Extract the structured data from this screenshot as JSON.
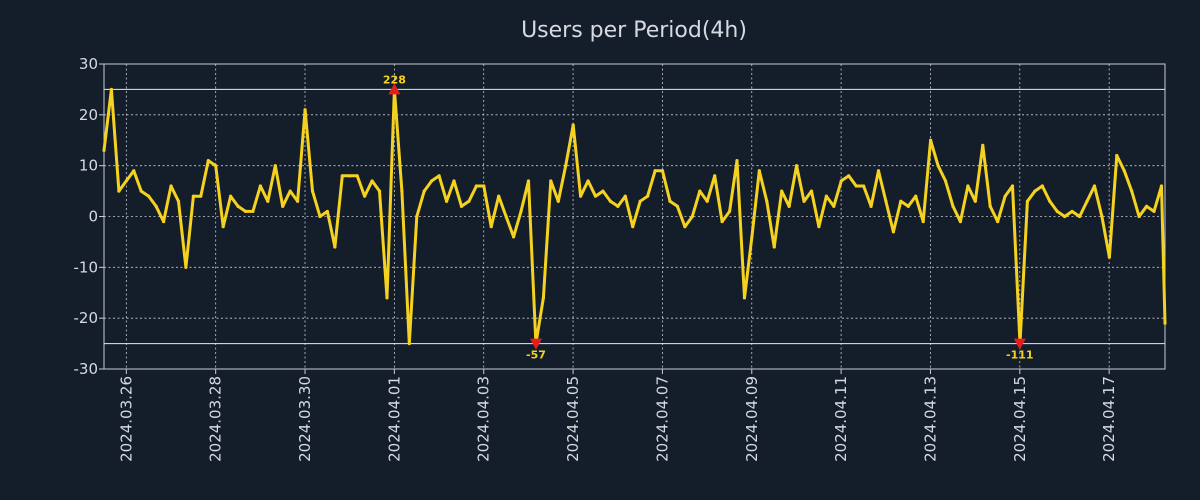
{
  "chart_data": {
    "type": "line",
    "title": "Users per Period(4h)",
    "xlabel": "",
    "ylabel": "",
    "ylim": [
      -30,
      30
    ],
    "yticks": [
      30,
      20,
      10,
      0,
      -10,
      -20,
      -30
    ],
    "xlim": [
      0,
      23.75
    ],
    "xticks": [
      {
        "pos": 0.5,
        "label": "2024.03.26"
      },
      {
        "pos": 2.5,
        "label": "2024.03.28"
      },
      {
        "pos": 4.5,
        "label": "2024.03.30"
      },
      {
        "pos": 6.5,
        "label": "2024.04.01"
      },
      {
        "pos": 8.5,
        "label": "2024.04.03"
      },
      {
        "pos": 10.5,
        "label": "2024.04.05"
      },
      {
        "pos": 12.5,
        "label": "2024.04.07"
      },
      {
        "pos": 14.5,
        "label": "2024.04.09"
      },
      {
        "pos": 16.5,
        "label": "2024.04.11"
      },
      {
        "pos": 18.5,
        "label": "2024.04.13"
      },
      {
        "pos": 20.5,
        "label": "2024.04.15"
      },
      {
        "pos": 22.5,
        "label": "2024.04.17"
      }
    ],
    "thresholds": [
      25,
      -25
    ],
    "series": [
      {
        "name": "Users",
        "color": "#f4d21f",
        "x_start": 0,
        "x_step": 0.1667,
        "values": [
          13,
          25,
          5,
          7,
          9,
          5,
          4,
          2,
          -1,
          6,
          3,
          -10,
          4,
          4,
          11,
          10,
          -2,
          4,
          2,
          1,
          1,
          6,
          3,
          10,
          2,
          5,
          3,
          21,
          5,
          0,
          1,
          -6,
          8,
          8,
          8,
          4,
          7,
          5,
          -16,
          25,
          5,
          -25,
          0,
          5,
          7,
          8,
          3,
          7,
          2,
          3,
          6,
          6,
          -2,
          4,
          0,
          -4,
          1,
          7,
          -25,
          -16,
          7,
          3,
          10,
          18,
          4,
          7,
          4,
          5,
          3,
          2,
          4,
          -2,
          3,
          4,
          9,
          9,
          3,
          2,
          -2,
          0,
          5,
          3,
          8,
          -1,
          1,
          11,
          -16,
          -4,
          9,
          3,
          -6,
          5,
          2,
          10,
          3,
          5,
          -2,
          4,
          2,
          7,
          8,
          6,
          6,
          2,
          9,
          3,
          -3,
          3,
          2,
          4,
          -1,
          15,
          10,
          7,
          2,
          -1,
          6,
          3,
          14,
          2,
          -1,
          4,
          6,
          -25,
          3,
          5,
          6,
          3,
          1,
          0,
          1,
          0,
          3,
          6,
          0,
          -8,
          12,
          9,
          5,
          0,
          2,
          1,
          6,
          -21
        ]
      }
    ],
    "annotations": [
      {
        "type": "max",
        "x": 6.5,
        "y": 25,
        "label": "228",
        "marker": "up"
      },
      {
        "type": "min",
        "x": 9.67,
        "y": -25,
        "label": "-57",
        "marker": "down"
      },
      {
        "type": "min",
        "x": 20.5,
        "y": -25,
        "label": "-111",
        "marker": "down"
      }
    ]
  }
}
